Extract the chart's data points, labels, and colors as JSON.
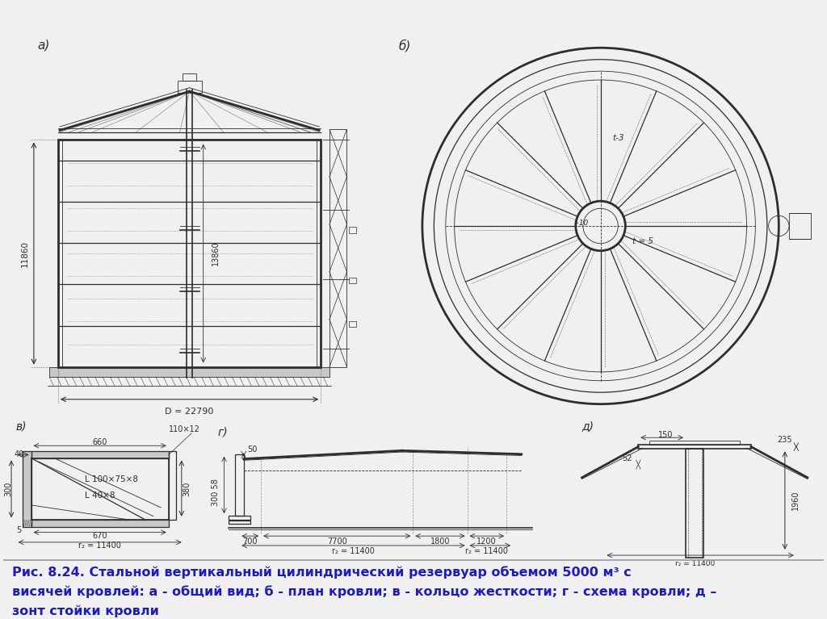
{
  "bg_color": "#f0f0f0",
  "drawing_color": "#2d2d2d",
  "white": "#ffffff",
  "caption_color": "#1a1acc",
  "caption_bg": "#d4d4d4",
  "caption_line1": "Рис. 8.24. Стальной вертикальный цилиндрический резервуар объемом 5000 м³ с",
  "caption_line2": "висячей кровлей: а - общий вид; б - план кровли; в - кольцо жесткости; г - схема кровли; д –",
  "caption_line3": "зонт стойки кровли",
  "label_a": "а)",
  "label_b": "б)",
  "label_v": "в)",
  "label_g": "г)",
  "label_d": "д)",
  "dim_D": "D = 22790",
  "dim_H": "11860",
  "dim_13860": "13860",
  "dim_t3": "t-3",
  "dim_t10": "t-10",
  "dim_t5": "t = 5",
  "dim_40": "40",
  "dim_660": "660",
  "dim_110x12": "110×12",
  "dim_300": "300",
  "dim_L100": "L 100×75×8",
  "dim_L40": "L 40×8",
  "dim_670": "670",
  "dim_5": "5",
  "dim_r2_11400_v": "r₂ = 11400",
  "dim_r2_11400_g": "r₂ = 11400",
  "dim_r2_11400_d": "r₂ = 11400",
  "dim_380": "380",
  "dim_300_58": "300 58",
  "dim_50": "50",
  "dim_700": "700",
  "dim_7700": "7700",
  "dim_1800": "1800",
  "dim_1200": "1200",
  "dim_150": "150",
  "dim_235": "235",
  "dim_52": "52",
  "dim_1960": "1960"
}
